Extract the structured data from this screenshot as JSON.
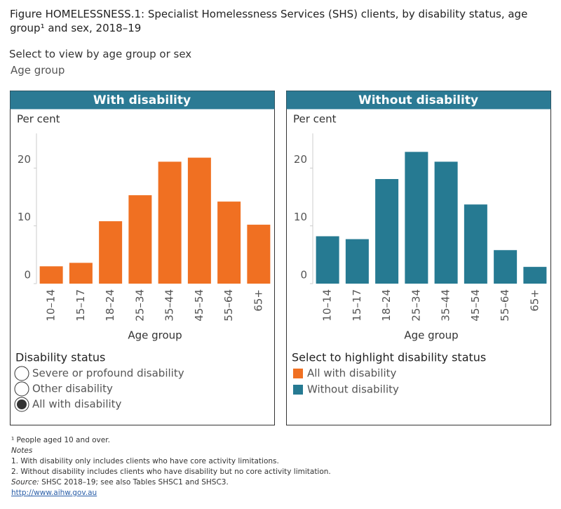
{
  "header": {
    "title": "Figure HOMELESSNESS.1: Specialist Homelessness Services (SHS) clients, by disability status, age group¹ and sex, 2018–19",
    "selector_label": "Select to view by age group or sex",
    "selector_value": "Age group"
  },
  "chart_data": [
    {
      "type": "bar",
      "title": "With disability",
      "y_label": "Per cent",
      "x_label": "Age group",
      "categories": [
        "10–14",
        "15–17",
        "18–24",
        "25–34",
        "35–44",
        "45–54",
        "55–64",
        "65+"
      ],
      "series": [
        {
          "name": "All with disability",
          "color": "#f07022",
          "values": [
            3.0,
            3.6,
            10.8,
            15.3,
            21.1,
            21.8,
            14.2,
            10.2
          ]
        }
      ],
      "ylim": [
        0,
        26
      ],
      "yticks": [
        0,
        10,
        20
      ]
    },
    {
      "type": "bar",
      "title": "Without disability",
      "y_label": "Per cent",
      "x_label": "Age group",
      "categories": [
        "10–14",
        "15–17",
        "18–24",
        "25–34",
        "35–44",
        "45–54",
        "55–64",
        "65+"
      ],
      "series": [
        {
          "name": "Without disability",
          "color": "#267a92",
          "values": [
            8.2,
            7.7,
            18.1,
            22.8,
            21.1,
            13.7,
            5.8,
            2.9
          ]
        }
      ],
      "ylim": [
        0,
        26
      ],
      "yticks": [
        0,
        10,
        20
      ]
    }
  ],
  "disability_filter": {
    "title": "Disability status",
    "options": [
      "Severe or profound disability",
      "Other disability",
      "All with disability"
    ],
    "selected": 2
  },
  "highlight_legend": {
    "title": "Select to highlight disability status"
  },
  "notes": {
    "footnote": "¹ People aged 10 and over.",
    "heading": "Notes",
    "lines": [
      "1. With disability only includes clients who have core activity limitations.",
      "2. Without disability includes clients who have disability but no core activity limitation."
    ],
    "source_label": "Source:",
    "source_text": " SHSC 2018–19; see also Tables SHSC1 and SHSC3.",
    "link": "http://www.aihw.gov.au"
  }
}
